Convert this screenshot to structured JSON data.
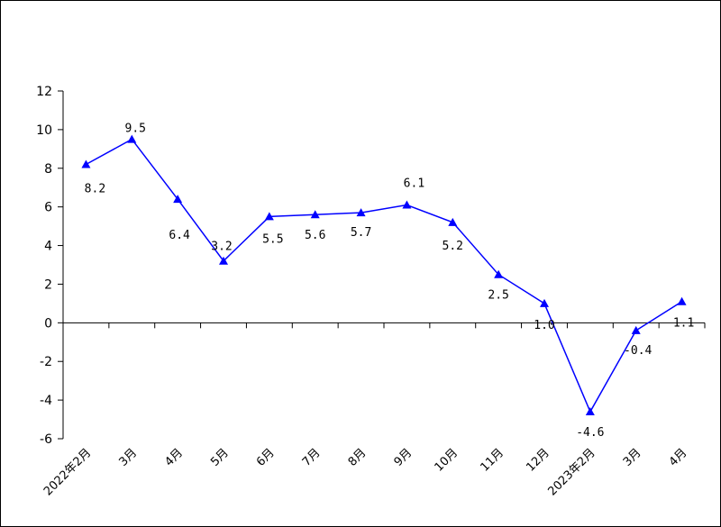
{
  "chart_data": {
    "type": "line",
    "title": "",
    "xlabel": "",
    "ylabel": "",
    "ylim": [
      -6,
      12
    ],
    "yticks": [
      12,
      10,
      8,
      6,
      4,
      2,
      0,
      -2,
      -4,
      -6
    ],
    "categories": [
      "2022年2月",
      "3月",
      "4月",
      "5月",
      "6月",
      "7月",
      "8月",
      "9月",
      "10月",
      "11月",
      "12月",
      "2023年2月",
      "3月",
      "4月"
    ],
    "values": [
      8.2,
      9.5,
      6.4,
      3.2,
      5.5,
      5.6,
      5.7,
      6.1,
      5.2,
      2.5,
      1.0,
      -4.6,
      -0.4,
      1.1
    ],
    "data_labels": [
      "8.2",
      "9.5",
      "6.4",
      "3.2",
      "5.5",
      "5.6",
      "5.7",
      "6.1",
      "5.2",
      "2.5",
      "1.0",
      "-4.6",
      "-0.4",
      "1.1"
    ],
    "line_color": "#0000FF",
    "marker": "triangle",
    "grid": false,
    "legend": "none"
  }
}
